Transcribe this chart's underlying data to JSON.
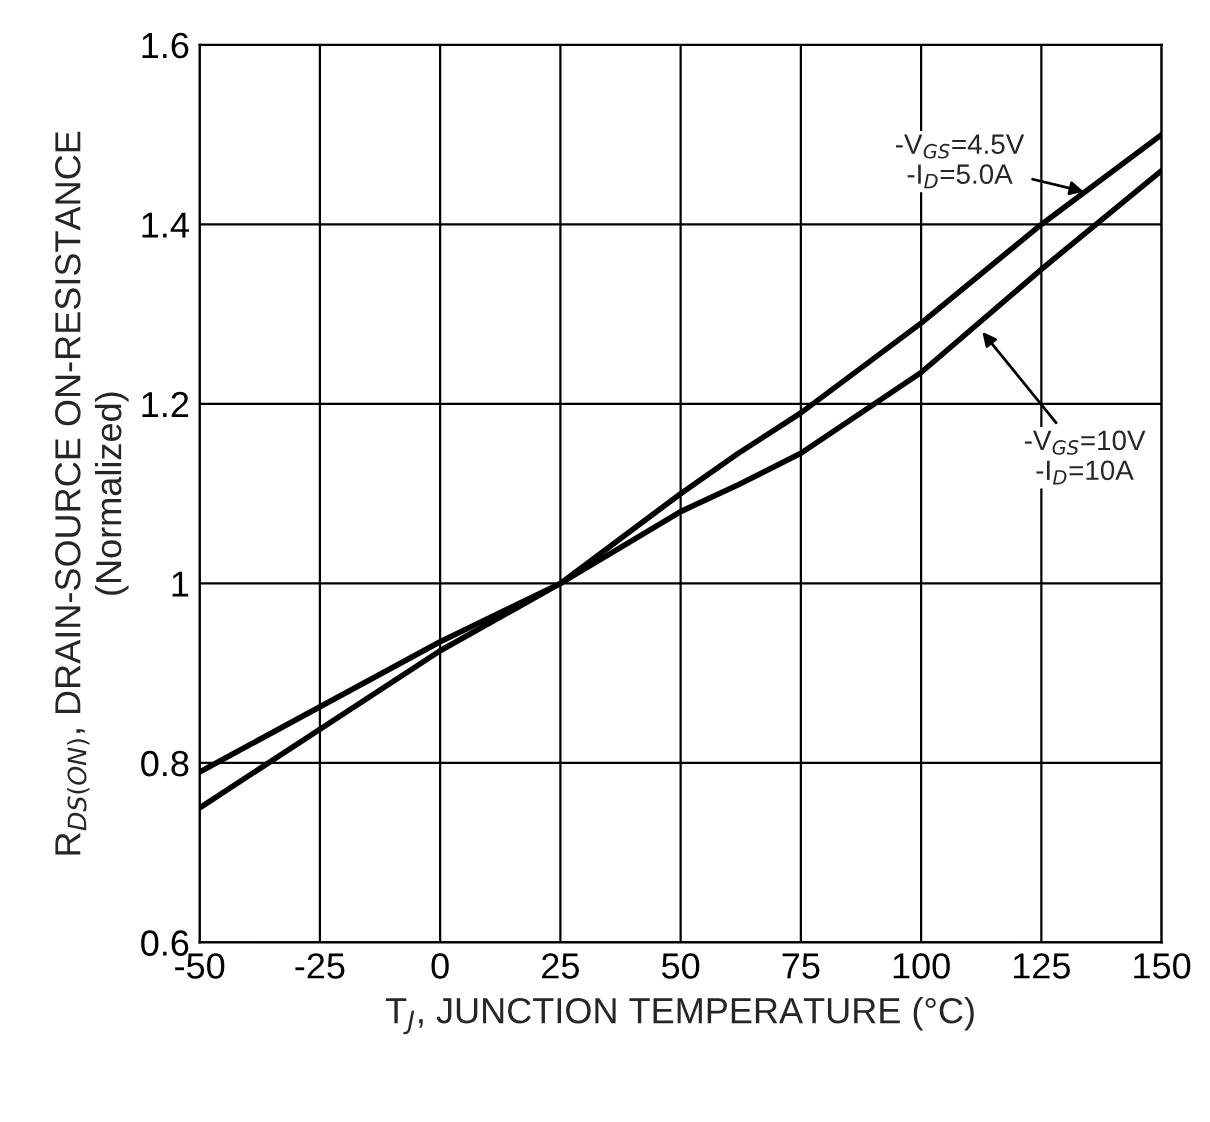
{
  "chart_data": {
    "type": "line",
    "xlabel": "T$_{J}$, JUNCTION TEMPERATURE (°C)",
    "ylabel": "R$_{DS(ON)}$, DRAIN-SOURCE ON-RESISTANCE\n(Normalized)",
    "x": [
      -50,
      0,
      25,
      50,
      62,
      75,
      100,
      125,
      150
    ],
    "series": [
      {
        "name": "-V$_{GS}$=4.5V\n-I$_{D}$=5.0A",
        "color": "#000000",
        "values": [
          0.75,
          0.925,
          1.0,
          1.1,
          1.145,
          1.19,
          1.29,
          1.4,
          1.5
        ]
      },
      {
        "name": "-V$_{GS}$=10V\n-I$_{D}$=10A",
        "color": "#000000",
        "values": [
          0.79,
          0.935,
          1.0,
          1.08,
          1.11,
          1.145,
          1.235,
          1.35,
          1.46
        ]
      }
    ],
    "xlim": [
      -50,
      150
    ],
    "xticks": [
      -50,
      -25,
      0,
      25,
      50,
      75,
      100,
      125,
      150
    ],
    "ylim": [
      0.6,
      1.6
    ],
    "yticks": [
      {
        "value": 0.6,
        "label": "0.6"
      },
      {
        "value": 0.8,
        "label": "0.8"
      },
      {
        "value": 1.0,
        "label": "1"
      },
      {
        "value": 1.2,
        "label": "1.2"
      },
      {
        "value": 1.4,
        "label": "1.4"
      },
      {
        "value": 1.6,
        "label": "1.6"
      }
    ],
    "grid": true,
    "legend": false,
    "line_style": "solid",
    "marker": "none"
  }
}
